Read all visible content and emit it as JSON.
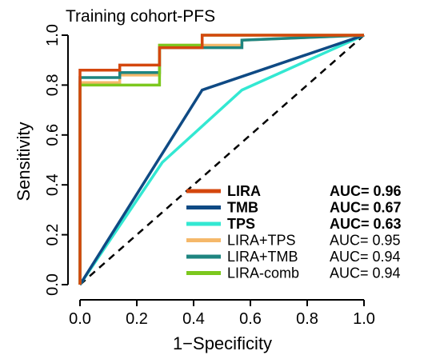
{
  "chart_data": {
    "type": "line",
    "title": "Training cohort-PFS",
    "xlabel": "1−Specificity",
    "ylabel": "Sensitivity",
    "xlim": [
      0,
      1
    ],
    "ylim": [
      0,
      1
    ],
    "xticks": [
      "0.0",
      "0.2",
      "0.4",
      "0.6",
      "0.8",
      "1.0"
    ],
    "yticks": [
      "0.0",
      "0.2",
      "0.4",
      "0.6",
      "0.8",
      "1.0"
    ],
    "legend_position": "bottom-right",
    "reference_line": "diagonal dashed",
    "series": [
      {
        "name": "LIRA",
        "auc_label": "AUC= 0.96",
        "bold": true,
        "color": "#d4470e",
        "x": [
          0,
          0,
          0.14,
          0.14,
          0.28,
          0.28,
          0.43,
          0.43,
          1.0
        ],
        "y": [
          0,
          0.86,
          0.86,
          0.88,
          0.88,
          0.95,
          0.95,
          1.0,
          1.0
        ]
      },
      {
        "name": "TMB",
        "auc_label": "AUC= 0.67",
        "bold": true,
        "color": "#0f4a84",
        "x": [
          0,
          0.43,
          1.0
        ],
        "y": [
          0,
          0.78,
          1.0
        ]
      },
      {
        "name": "TPS",
        "auc_label": "AUC= 0.63",
        "bold": true,
        "color": "#33e8d2",
        "x": [
          0,
          0.29,
          0.57,
          1.0
        ],
        "y": [
          0,
          0.49,
          0.78,
          1.0
        ]
      },
      {
        "name": "LIRA+TPS",
        "auc_label": "AUC= 0.95",
        "bold": false,
        "color": "#f5b86a",
        "x": [
          0,
          0,
          0.14,
          0.14,
          0.28,
          0.28,
          0.57,
          0.57,
          1.0
        ],
        "y": [
          0,
          0.81,
          0.81,
          0.84,
          0.84,
          0.96,
          0.96,
          0.98,
          1.0
        ]
      },
      {
        "name": "LIRA+TMB",
        "auc_label": "AUC= 0.94",
        "bold": false,
        "color": "#1e8580",
        "x": [
          0,
          0,
          0.14,
          0.14,
          0.28,
          0.28,
          0.57,
          0.57,
          1.0
        ],
        "y": [
          0,
          0.83,
          0.83,
          0.85,
          0.85,
          0.95,
          0.95,
          0.98,
          1.0
        ]
      },
      {
        "name": "LIRA-comb",
        "auc_label": "AUC= 0.94",
        "bold": false,
        "color": "#7cc81e",
        "x": [
          0,
          0,
          0.28,
          0.28,
          0.43,
          0.43,
          1.0
        ],
        "y": [
          0,
          0.8,
          0.8,
          0.96,
          0.96,
          1.0,
          1.0
        ]
      }
    ]
  }
}
